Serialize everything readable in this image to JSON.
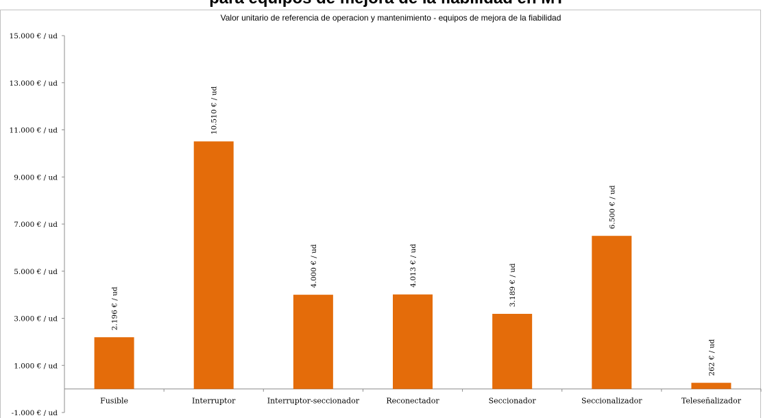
{
  "header": {
    "slide_title": "para equipos de mejora de la fiabilidad en MT"
  },
  "colors": {
    "bar": "#e46c0a",
    "axis": "#8c8c8c",
    "frame": "#c0c0c0"
  },
  "chart_data": {
    "type": "bar",
    "title": "Valor unitario de referencia de operacion y mantenimiento - equipos de mejora de la fiabilidad",
    "xlabel": "",
    "ylabel": "",
    "categories": [
      "Fusible",
      "Interruptor",
      "Interruptor-seccionador",
      "Reconectador",
      "Seccionador",
      "Seccionalizador",
      "Teleseñalizador"
    ],
    "values": [
      2196,
      10510,
      4000,
      4013,
      3189,
      6500,
      262
    ],
    "data_labels": [
      "2.196 € / ud",
      "10.510 € / ud",
      "4.000 € / ud",
      "4.013 € / ud",
      "3.189 € / ud",
      "6.500 € / ud",
      "262 € / ud"
    ],
    "ylim": [
      -1000,
      15000
    ],
    "yticks": [
      -1000,
      1000,
      3000,
      5000,
      7000,
      9000,
      11000,
      13000,
      15000
    ],
    "ytick_labels": [
      "-1.000 € / ud",
      "1.000 € / ud",
      "3.000 € / ud",
      "5.000 € / ud",
      "7.000 € / ud",
      "9.000 € / ud",
      "11.000 € / ud",
      "13.000 € / ud",
      "15.000 € / ud"
    ],
    "grid": false,
    "legend": "none"
  }
}
